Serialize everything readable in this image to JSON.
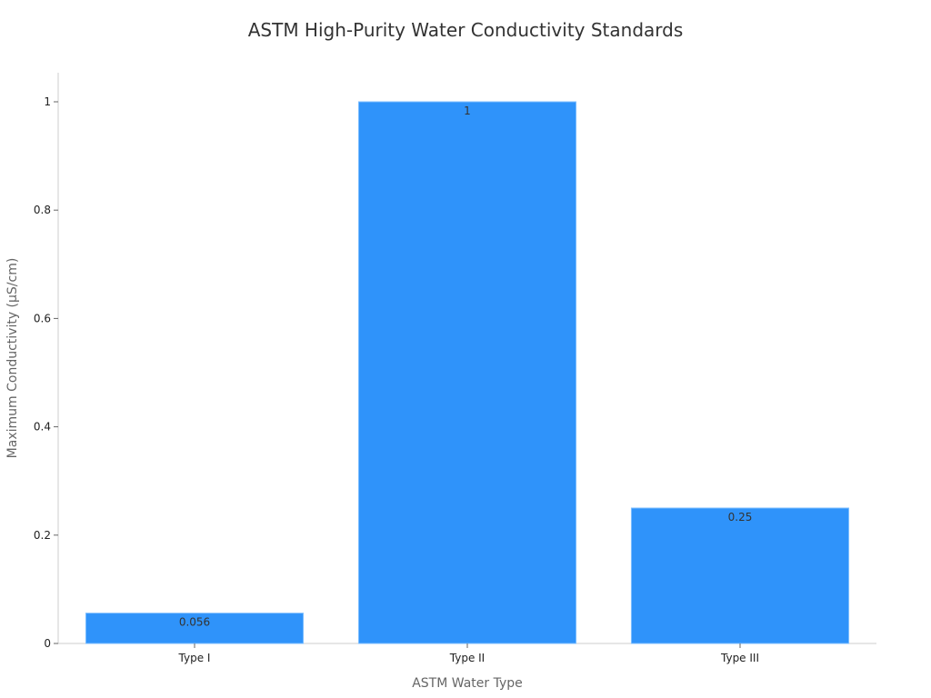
{
  "chart_data": {
    "type": "bar",
    "title": "ASTM High-Purity Water Conductivity Standards",
    "xlabel": "ASTM Water Type",
    "ylabel": "Maximum Conductivity (μS/cm)",
    "categories": [
      "Type I",
      "Type II",
      "Type III"
    ],
    "values": [
      0.056,
      1,
      0.25
    ],
    "data_labels": [
      "0.056",
      "1",
      "0.25"
    ],
    "ylim": [
      0,
      1.05
    ],
    "yticks": [
      0,
      0.2,
      0.4,
      0.6,
      0.8,
      1
    ],
    "ytick_labels": [
      "0",
      "0.2",
      "0.4",
      "0.6",
      "0.8",
      "1"
    ],
    "grid": false,
    "legend": "none",
    "colors": {
      "bar": "#2f93fa",
      "axis": "#cccccc"
    }
  }
}
